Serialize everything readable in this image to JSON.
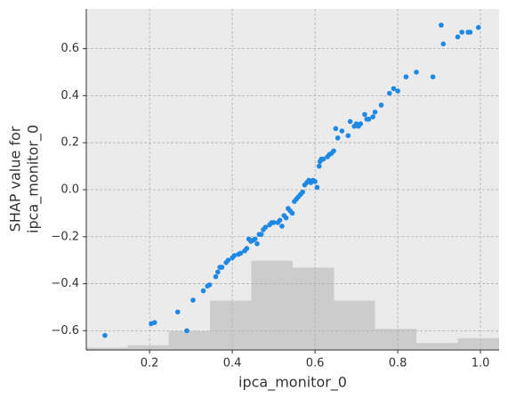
{
  "chart_data": {
    "type": "scatter",
    "xlabel": "ipca_monitor_0",
    "ylabel": [
      "SHAP value for",
      "ipca_monitor_0"
    ],
    "color": "#1e88e5",
    "grid": true,
    "xlim": [
      0.047,
      1.045
    ],
    "ylim": [
      -0.682,
      0.769
    ],
    "xticks": [
      0.2,
      0.4,
      0.6,
      0.8,
      {
        "value": 1.0,
        "label": "1.0"
      }
    ],
    "yticks": [
      {
        "value": -0.6,
        "label": "−0.6"
      },
      {
        "value": -0.4,
        "label": "−0.4"
      },
      {
        "value": -0.2,
        "label": "−0.2"
      },
      {
        "value": 0,
        "label": "0.0"
      },
      0.2,
      0.4,
      0.6
    ],
    "histogram": {
      "color": "#cccccc",
      "bins": [
        0.047,
        0.147,
        0.246,
        0.346,
        0.446,
        0.546,
        0.646,
        0.745,
        0.845,
        0.945,
        1.045
      ],
      "counts": [
        1,
        2,
        8,
        21,
        38,
        35,
        21,
        9,
        3,
        5
      ],
      "ylim": [
        0,
        145
      ]
    },
    "x": [
      0.092,
      0.204,
      0.212,
      0.268,
      0.29,
      0.305,
      0.33,
      0.34,
      0.345,
      0.36,
      0.365,
      0.37,
      0.375,
      0.385,
      0.39,
      0.4,
      0.405,
      0.415,
      0.42,
      0.43,
      0.435,
      0.44,
      0.445,
      0.45,
      0.455,
      0.46,
      0.465,
      0.47,
      0.475,
      0.48,
      0.49,
      0.495,
      0.5,
      0.51,
      0.515,
      0.52,
      0.525,
      0.53,
      0.535,
      0.54,
      0.545,
      0.55,
      0.555,
      0.56,
      0.565,
      0.57,
      0.575,
      0.58,
      0.585,
      0.59,
      0.595,
      0.6,
      0.605,
      0.61,
      0.612,
      0.615,
      0.62,
      0.63,
      0.635,
      0.64,
      0.645,
      0.65,
      0.655,
      0.665,
      0.68,
      0.685,
      0.695,
      0.7,
      0.705,
      0.71,
      0.72,
      0.725,
      0.73,
      0.74,
      0.745,
      0.76,
      0.78,
      0.79,
      0.8,
      0.82,
      0.845,
      0.885,
      0.905,
      0.91,
      0.945,
      0.955,
      0.97,
      0.975,
      0.995
    ],
    "values": [
      -0.62,
      -0.57,
      -0.565,
      -0.52,
      -0.6,
      -0.47,
      -0.43,
      -0.41,
      -0.405,
      -0.37,
      -0.35,
      -0.33,
      -0.33,
      -0.31,
      -0.3,
      -0.29,
      -0.28,
      -0.275,
      -0.27,
      -0.26,
      -0.25,
      -0.21,
      -0.22,
      -0.215,
      -0.21,
      -0.23,
      -0.19,
      -0.19,
      -0.17,
      -0.16,
      -0.15,
      -0.14,
      -0.14,
      -0.14,
      -0.13,
      -0.155,
      -0.11,
      -0.12,
      -0.08,
      -0.09,
      -0.1,
      -0.05,
      -0.04,
      -0.03,
      -0.02,
      -0.01,
      0.02,
      0.03,
      0.04,
      0.03,
      0.04,
      0.035,
      0.01,
      0.1,
      0.12,
      0.13,
      0.13,
      0.14,
      0.15,
      0.155,
      0.165,
      0.26,
      0.22,
      0.25,
      0.23,
      0.29,
      0.27,
      0.28,
      0.27,
      0.28,
      0.32,
      0.3,
      0.3,
      0.31,
      0.33,
      0.36,
      0.41,
      0.43,
      0.42,
      0.48,
      0.5,
      0.48,
      0.7,
      0.62,
      0.65,
      0.67,
      0.67,
      0.67,
      0.69
    ]
  }
}
